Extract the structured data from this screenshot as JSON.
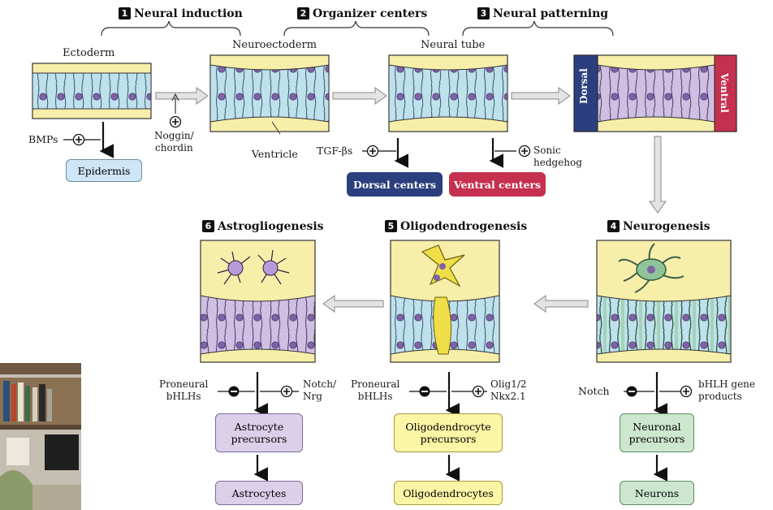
{
  "steps": {
    "s1": {
      "num": "1",
      "label": "Neural induction"
    },
    "s2": {
      "num": "2",
      "label": "Organizer centers"
    },
    "s3": {
      "num": "3",
      "label": "Neural patterning"
    },
    "s4": {
      "num": "4",
      "label": "Neurogenesis"
    },
    "s5": {
      "num": "5",
      "label": "Oligodendrogenesis"
    },
    "s6": {
      "num": "6",
      "label": "Astrogliogenesis"
    }
  },
  "tissues": {
    "ectoderm": "Ectoderm",
    "neuroectoderm": "Neuroectoderm",
    "neural_tube": "Neural tube",
    "dorsal": "Dorsal",
    "ventral": "Ventral",
    "ventricle": "Ventricle"
  },
  "signals": {
    "bmps": "BMPs",
    "noggin_l1": "Noggin/",
    "noggin_l2": "chordin",
    "tgf": "TGF-βs",
    "sonic_l1": "Sonic",
    "sonic_l2": "hedgehog",
    "notch4": "Notch",
    "bhlh4_l1": "bHLH gene",
    "bhlh4_l2": "products",
    "proneural5_l1": "Proneural",
    "proneural5_l2": "bHLHs",
    "olig_l1": "Olig1/2",
    "olig_l2": "Nkx2.1",
    "proneural6_l1": "Proneural",
    "proneural6_l2": "bHLHs",
    "notch6_l1": "Notch/",
    "notch6_l2": "Nrg"
  },
  "boxes": {
    "epidermis": "Epidermis",
    "dorsal_centers": "Dorsal centers",
    "ventral_centers": "Ventral centers",
    "neuronal_l1": "Neuronal",
    "neuronal_l2": "precursors",
    "neurons": "Neurons",
    "oligo_l1": "Oligodendrocyte",
    "oligo_l2": "precursors",
    "oligodendrocytes": "Oligodendrocytes",
    "astro_l1": "Astrocyte",
    "astro_l2": "precursors",
    "astrocytes": "Astrocytes"
  },
  "colors": {
    "tissue_yellow": "#f7eeaa",
    "cell_body": "#7f62a8",
    "cell_light": "#bfe1ee",
    "dorsal_blue": "#2b3f7e",
    "ventral_red": "#c6304f",
    "epidermis_fill": "#cfe6f6",
    "neuronal_fill": "#cde7cf",
    "oligo_fill": "#fbf5a6",
    "astro_fill": "#dccfea"
  }
}
